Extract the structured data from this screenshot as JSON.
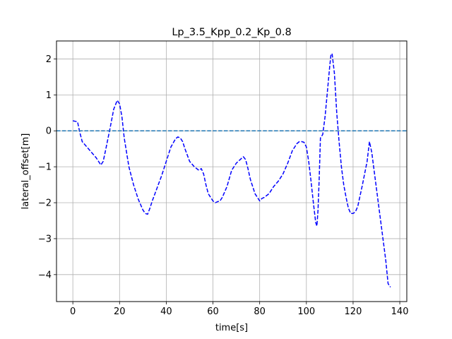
{
  "chart_data": {
    "type": "line",
    "title": "Lp_3.5_Kpp_0.2_Kp_0.8",
    "xlabel": "time[s]",
    "ylabel": "lateral_offset[m]",
    "xlim": [
      -7,
      143
    ],
    "ylim": [
      -4.75,
      2.5
    ],
    "xticks": [
      0,
      20,
      40,
      60,
      80,
      100,
      120,
      140
    ],
    "yticks": [
      -4,
      -3,
      -2,
      -1,
      0,
      1,
      2
    ],
    "grid": true,
    "legend": "none",
    "series": [
      {
        "color": "#0000ff",
        "line_style": "dashed",
        "x": [
          0,
          2,
          2.5,
          3,
          4,
          6,
          8,
          10,
          12,
          13,
          14,
          16,
          17.5,
          19,
          20,
          21,
          22,
          24,
          26,
          28,
          30,
          31,
          32,
          33,
          34,
          36,
          38,
          40,
          42,
          44,
          45,
          46,
          47,
          48,
          50,
          52,
          54,
          55,
          56,
          57,
          58,
          60,
          61,
          62,
          63,
          64,
          66,
          68,
          70,
          72,
          73,
          74,
          75,
          76,
          78,
          80,
          81,
          82,
          84,
          86,
          88,
          90,
          92,
          94,
          96,
          97,
          98,
          99,
          100,
          101,
          102,
          103,
          104,
          104.5,
          105,
          105.5,
          106,
          107,
          108,
          109,
          110,
          110.5,
          111,
          112,
          113,
          114,
          115,
          116,
          117,
          118,
          119,
          120,
          121,
          122,
          124,
          126,
          127,
          128,
          130,
          132,
          134,
          135,
          136
        ],
        "y": [
          0.28,
          0.25,
          0.1,
          -0.05,
          -0.3,
          -0.45,
          -0.6,
          -0.75,
          -0.95,
          -0.85,
          -0.55,
          0.1,
          0.6,
          0.85,
          0.75,
          0.4,
          -0.2,
          -1.0,
          -1.5,
          -1.9,
          -2.2,
          -2.3,
          -2.32,
          -2.15,
          -1.95,
          -1.6,
          -1.25,
          -0.85,
          -0.45,
          -0.22,
          -0.17,
          -0.2,
          -0.3,
          -0.5,
          -0.85,
          -1.0,
          -1.1,
          -1.05,
          -1.2,
          -1.5,
          -1.75,
          -1.95,
          -2.0,
          -1.97,
          -1.95,
          -1.85,
          -1.55,
          -1.1,
          -0.9,
          -0.78,
          -0.72,
          -0.8,
          -1.05,
          -1.35,
          -1.75,
          -1.95,
          -1.88,
          -1.85,
          -1.75,
          -1.55,
          -1.4,
          -1.2,
          -0.9,
          -0.55,
          -0.35,
          -0.3,
          -0.3,
          -0.32,
          -0.45,
          -0.85,
          -1.4,
          -2.0,
          -2.55,
          -2.65,
          -2.2,
          -1.3,
          -0.2,
          -0.1,
          0.4,
          1.1,
          1.8,
          2.1,
          2.15,
          1.6,
          0.5,
          -0.3,
          -1.0,
          -1.5,
          -1.85,
          -2.15,
          -2.3,
          -2.3,
          -2.25,
          -2.1,
          -1.5,
          -0.85,
          -0.3,
          -0.6,
          -1.6,
          -2.6,
          -3.6,
          -4.25,
          -4.35
        ]
      },
      {
        "color": "#1f77b4",
        "line_style": "dashed",
        "x": [
          -7,
          143
        ],
        "y": [
          0,
          0
        ]
      }
    ]
  }
}
